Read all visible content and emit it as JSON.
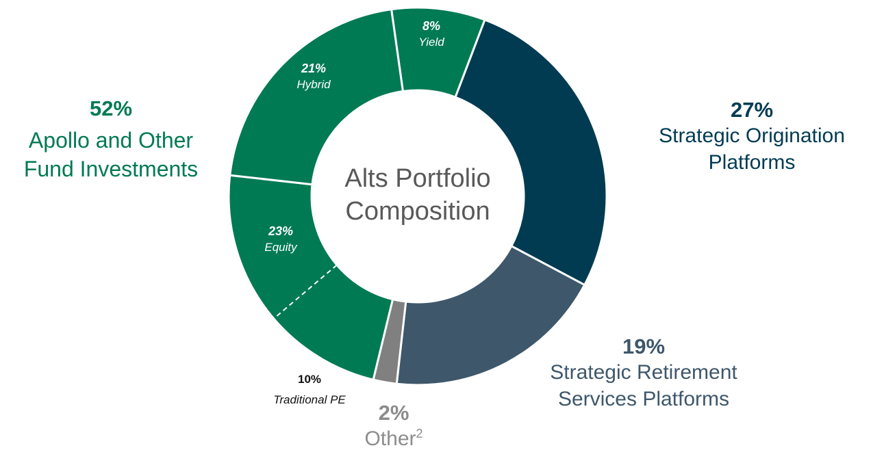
{
  "chart_data": {
    "type": "donut",
    "center_label": "Alts Portfolio Composition",
    "segments": [
      {
        "name": "Yield",
        "value": 8,
        "value_label": "8%",
        "color": "#007a53"
      },
      {
        "name": "Strategic Origination Platforms",
        "value": 27,
        "value_label": "27%",
        "color": "#003b52"
      },
      {
        "name": "Strategic Retirement Services Platforms",
        "value": 19,
        "value_label": "19%",
        "color": "#3e576b"
      },
      {
        "name": "Other",
        "footnote": "2",
        "value": 2,
        "value_label": "2%",
        "color": "#808080"
      },
      {
        "name": "Equity",
        "value": 23,
        "value_label": "23%",
        "color": "#007a53",
        "sub": {
          "name": "Traditional PE",
          "value": 10,
          "value_label": "10%"
        }
      },
      {
        "name": "Hybrid",
        "value": 21,
        "value_label": "21%",
        "color": "#007a53"
      }
    ],
    "group": {
      "name": "Apollo and Other Fund Investments",
      "value": 52,
      "value_label": "52%",
      "color": "#007a53"
    }
  }
}
